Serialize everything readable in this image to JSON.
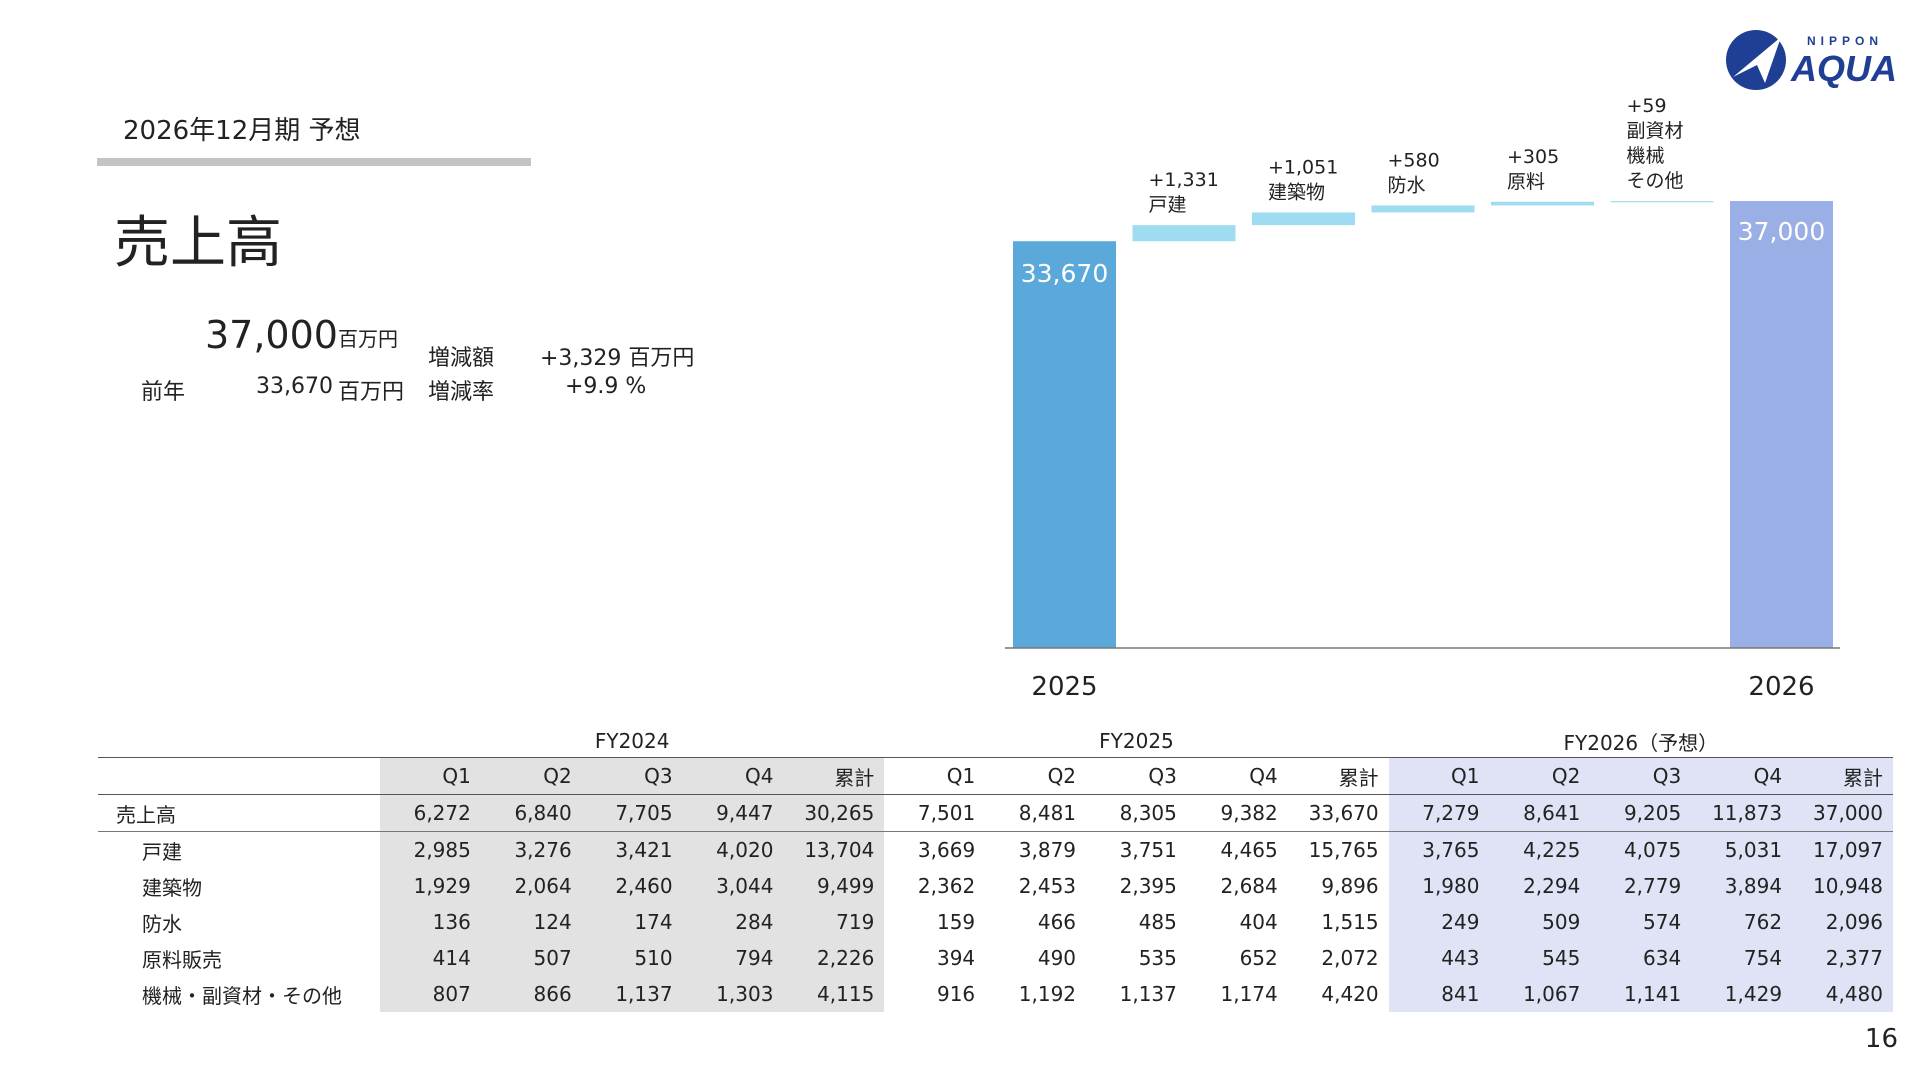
{
  "header": {
    "period": "2026年12月期 予想",
    "title": "売上高"
  },
  "summary": {
    "value": "37,000",
    "unit": "百万円",
    "prev_label": "前年",
    "prev_value": "33,670",
    "prev_unit": "百万円",
    "change_amount_label": "増減額",
    "change_amount_value": "+3,329 百万円",
    "change_rate_label": "増減率",
    "change_rate_value": "+9.9 %"
  },
  "logo": {
    "top_text": "NIPPON",
    "main_text": "AQUA",
    "color": "#1f3f95"
  },
  "colors": {
    "start_bar": "#5ba9da",
    "end_bar": "#9aafe6",
    "step_bar": "#9fdcf2",
    "fy2024_bg": "#e2e2e2",
    "fy2026_bg": "#dfe3f5"
  },
  "chart_data": {
    "type": "bar",
    "subtype": "waterfall",
    "start": {
      "label": "2025",
      "value": 33670,
      "value_label": "33,670"
    },
    "steps": [
      {
        "label_lines": [
          "+1,331",
          "戸建"
        ],
        "value": 1331
      },
      {
        "label_lines": [
          "+1,051",
          "建築物"
        ],
        "value": 1051
      },
      {
        "label_lines": [
          "+580",
          "防水"
        ],
        "value": 580
      },
      {
        "label_lines": [
          "+305",
          "原料"
        ],
        "value": 305
      },
      {
        "label_lines": [
          "+59",
          "副資材",
          "機械",
          "その他"
        ],
        "value": 59
      }
    ],
    "end": {
      "label": "2026",
      "value": 37000,
      "value_label": "37,000"
    },
    "ylim": [
      0,
      37000
    ],
    "grid": false,
    "legend": "none"
  },
  "table": {
    "fiscal_years": [
      "FY2024",
      "FY2025",
      "FY2026（予想）"
    ],
    "quarter_headers": [
      "Q1",
      "Q2",
      "Q3",
      "Q4",
      "累計"
    ],
    "rows": [
      {
        "label": "売上高",
        "values": [
          "6,272",
          "6,840",
          "7,705",
          "9,447",
          "30,265",
          "7,501",
          "8,481",
          "8,305",
          "9,382",
          "33,670",
          "7,279",
          "8,641",
          "9,205",
          "11,873",
          "37,000"
        ]
      },
      {
        "label": "戸建",
        "values": [
          "2,985",
          "3,276",
          "3,421",
          "4,020",
          "13,704",
          "3,669",
          "3,879",
          "3,751",
          "4,465",
          "15,765",
          "3,765",
          "4,225",
          "4,075",
          "5,031",
          "17,097"
        ]
      },
      {
        "label": "建築物",
        "values": [
          "1,929",
          "2,064",
          "2,460",
          "3,044",
          "9,499",
          "2,362",
          "2,453",
          "2,395",
          "2,684",
          "9,896",
          "1,980",
          "2,294",
          "2,779",
          "3,894",
          "10,948"
        ]
      },
      {
        "label": "防水",
        "values": [
          "136",
          "124",
          "174",
          "284",
          "719",
          "159",
          "466",
          "485",
          "404",
          "1,515",
          "249",
          "509",
          "574",
          "762",
          "2,096"
        ]
      },
      {
        "label": "原料販売",
        "values": [
          "414",
          "507",
          "510",
          "794",
          "2,226",
          "394",
          "490",
          "535",
          "652",
          "2,072",
          "443",
          "545",
          "634",
          "754",
          "2,377"
        ]
      },
      {
        "label": "機械・副資材・その他",
        "values": [
          "807",
          "866",
          "1,137",
          "1,303",
          "4,115",
          "916",
          "1,192",
          "1,137",
          "1,174",
          "4,420",
          "841",
          "1,067",
          "1,141",
          "1,429",
          "4,480"
        ]
      }
    ]
  },
  "page_number": "16"
}
